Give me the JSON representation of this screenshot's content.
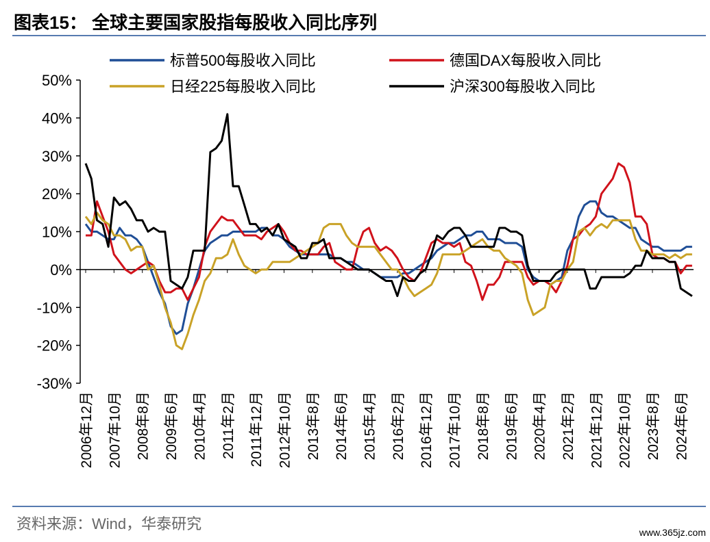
{
  "chart_data": {
    "type": "line",
    "title": "图表15：  全球主要国家股指每股收入同比序列",
    "source": "资料来源：Wind，华泰研究",
    "watermark": "www.365jz.com",
    "categories": [
      "2006年12月",
      null,
      null,
      null,
      null,
      "2007年10月",
      null,
      null,
      null,
      null,
      "2008年8月",
      null,
      null,
      null,
      null,
      "2009年6月",
      null,
      null,
      null,
      null,
      "2010年4月",
      null,
      null,
      null,
      null,
      "2011年2月",
      null,
      null,
      null,
      null,
      "2011年12月",
      null,
      null,
      null,
      null,
      "2012年10月",
      null,
      null,
      null,
      null,
      "2013年8月",
      null,
      null,
      null,
      null,
      "2014年6月",
      null,
      null,
      null,
      null,
      "2015年4月",
      null,
      null,
      null,
      null,
      "2016年2月",
      null,
      null,
      null,
      null,
      "2016年12月",
      null,
      null,
      null,
      null,
      "2017年10月",
      null,
      null,
      null,
      null,
      "2018年8月",
      null,
      null,
      null,
      null,
      "2019年6月",
      null,
      null,
      null,
      null,
      "2020年4月",
      null,
      null,
      null,
      null,
      "2021年2月",
      null,
      null,
      null,
      null,
      "2021年12月",
      null,
      null,
      null,
      null,
      "2022年10月",
      null,
      null,
      null,
      null,
      "2023年8月",
      null,
      null,
      null,
      null,
      "2024年6月",
      null,
      null
    ],
    "ylim": [
      -30,
      50
    ],
    "yticks": [
      {
        "value": -30,
        "label": "-30%"
      },
      {
        "value": -20,
        "label": "-20%"
      },
      {
        "value": -10,
        "label": "-10%"
      },
      {
        "value": 0,
        "label": "0%"
      },
      {
        "value": 10,
        "label": "10%"
      },
      {
        "value": 20,
        "label": "20%"
      },
      {
        "value": 30,
        "label": "30%"
      },
      {
        "value": 40,
        "label": "40%"
      },
      {
        "value": 50,
        "label": "50%"
      }
    ],
    "series": [
      {
        "name": "标普500每股收入同比",
        "color": "#1f4e96",
        "values": [
          12,
          10,
          10,
          9,
          8,
          8,
          11,
          9,
          9,
          8,
          6,
          2,
          -2,
          -6,
          -9,
          -15,
          -17,
          -16,
          -9,
          -5,
          0,
          5,
          7,
          8,
          9,
          9,
          10,
          10,
          10,
          10,
          10,
          11,
          11,
          9,
          9,
          8,
          6,
          5,
          4,
          4,
          4,
          4,
          4,
          4,
          3,
          3,
          2,
          2,
          1,
          0,
          0,
          -1,
          -2,
          -2,
          -2,
          -2,
          -1,
          -1,
          0,
          1,
          2,
          3,
          5,
          6,
          7,
          7,
          8,
          9,
          9,
          10,
          10,
          8,
          8,
          8,
          7,
          7,
          7,
          6,
          0,
          -2,
          -3,
          -3,
          -4,
          -3,
          -2,
          5,
          8,
          14,
          17,
          18,
          18,
          15,
          14,
          14,
          13,
          12,
          11,
          11,
          8,
          7,
          6,
          6,
          5,
          5,
          5,
          5,
          6,
          6
        ]
      },
      {
        "name": "德国DAX每股收入同比",
        "color": "#d0121b",
        "values": [
          9,
          9,
          18,
          14,
          10,
          4,
          2,
          0,
          -1,
          0,
          1,
          2,
          1,
          -3,
          -6,
          -6,
          -5,
          -5,
          -8,
          -5,
          -2,
          6,
          10,
          12,
          14,
          13,
          13,
          11,
          9,
          9,
          9,
          8,
          10,
          11,
          12,
          10,
          7,
          5,
          5,
          4,
          4,
          4,
          6,
          7,
          2,
          1,
          0,
          0,
          6,
          10,
          11,
          7,
          5,
          6,
          5,
          3,
          0,
          -2,
          -3,
          -1,
          3,
          7,
          8,
          7,
          7,
          6,
          7,
          2,
          1,
          -3,
          -8,
          -4,
          -4,
          -2,
          2,
          2,
          2,
          2,
          -2,
          -4,
          -3,
          -3,
          -4,
          -6,
          -3,
          1,
          8,
          9,
          11,
          12,
          14,
          20,
          22,
          24,
          28,
          27,
          23,
          14,
          14,
          12,
          4,
          3,
          3,
          2,
          2,
          -1,
          1,
          1
        ]
      },
      {
        "name": "日经225每股收入同比",
        "color": "#c9a227",
        "values": [
          14,
          12,
          15,
          13,
          12,
          9,
          9,
          8,
          5,
          6,
          6,
          0,
          1,
          -4,
          -10,
          -14,
          -20,
          -21,
          -17,
          -12,
          -8,
          -3,
          -1,
          3,
          3,
          4,
          8,
          4,
          1,
          0,
          -1,
          0,
          0,
          2,
          2,
          2,
          2,
          3,
          4,
          5,
          6,
          7,
          11,
          12,
          12,
          12,
          9,
          7,
          6,
          6,
          6,
          6,
          4,
          2,
          0,
          0,
          -2,
          -5,
          -7,
          -6,
          -5,
          -4,
          -1,
          4,
          4,
          4,
          4,
          5,
          6,
          7,
          8,
          6,
          5,
          5,
          3,
          2,
          1,
          -1,
          -8,
          -12,
          -11,
          -10,
          -4,
          -3,
          -3,
          0,
          2,
          10,
          11,
          9,
          11,
          12,
          11,
          13,
          13,
          13,
          13,
          8,
          5,
          5,
          4,
          4,
          4,
          3,
          4,
          3,
          4,
          4
        ]
      },
      {
        "name": "沪深300每股收入同比",
        "color": "#000000",
        "values": [
          28,
          24,
          13,
          12,
          6,
          19,
          17,
          18,
          16,
          13,
          13,
          10,
          11,
          10,
          10,
          -3,
          -4,
          -5,
          -2,
          5,
          5,
          5,
          31,
          32,
          34,
          41,
          22,
          22,
          17,
          12,
          12,
          10,
          11,
          9,
          12,
          8,
          7,
          6,
          3,
          3,
          7,
          7,
          8,
          3,
          3,
          3,
          2,
          1,
          0,
          0,
          0,
          -1,
          -2,
          -3,
          -3,
          -7,
          -2,
          -3,
          -3,
          -1,
          0,
          4,
          9,
          8,
          10,
          11,
          11,
          9,
          6,
          6,
          6,
          6,
          6,
          11,
          11,
          10,
          10,
          9,
          1,
          -3,
          -3,
          -3,
          -3,
          -1,
          0,
          0,
          0,
          0,
          0,
          -5,
          -5,
          -2,
          -2,
          -2,
          -2,
          -2,
          -1,
          1,
          1,
          5,
          3,
          3,
          3,
          2,
          2,
          -5,
          -6,
          -7
        ]
      }
    ]
  }
}
